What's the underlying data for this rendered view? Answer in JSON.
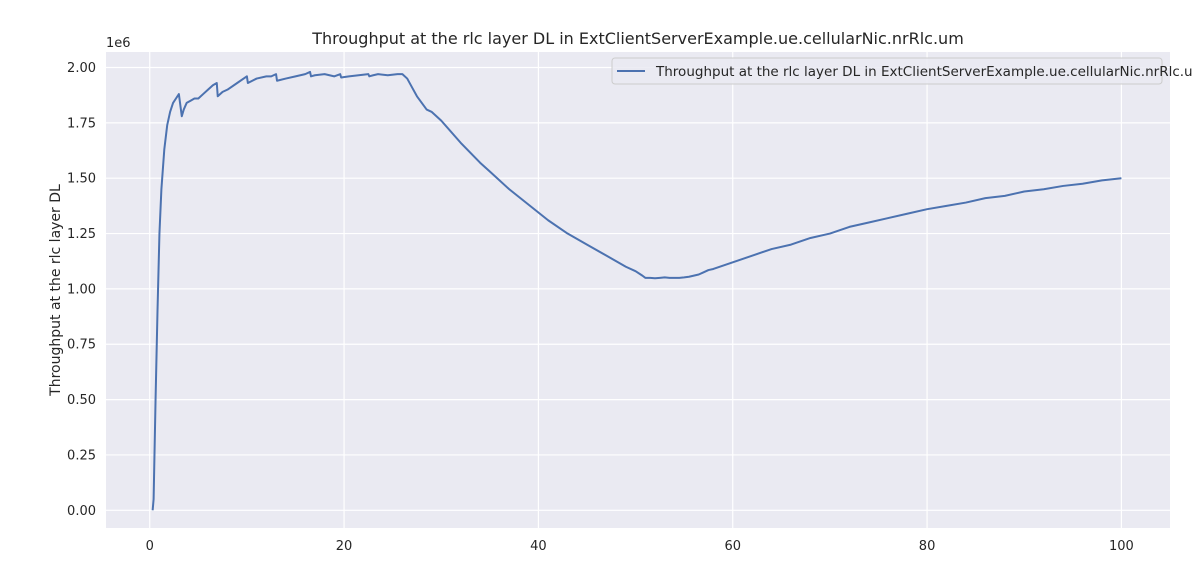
{
  "chart_data": {
    "type": "line",
    "title": "Throughput at the rlc layer DL in ExtClientServerExample.ue.cellularNic.nrRlc.um",
    "xlabel": "",
    "ylabel": "Throughput at the rlc layer DL",
    "y_offset_label": "1e6",
    "xlim": [
      -4.5,
      105
    ],
    "ylim": [
      -0.08,
      2.07
    ],
    "x_ticks": [
      0,
      20,
      40,
      60,
      80,
      100
    ],
    "x_tick_labels": [
      "0",
      "20",
      "40",
      "60",
      "80",
      "100"
    ],
    "y_ticks": [
      0.0,
      0.25,
      0.5,
      0.75,
      1.0,
      1.25,
      1.5,
      1.75,
      2.0
    ],
    "y_tick_labels": [
      "0.00",
      "0.25",
      "0.50",
      "0.75",
      "1.00",
      "1.25",
      "1.50",
      "1.75",
      "2.00"
    ],
    "grid": true,
    "legend_position": "top-right",
    "series": [
      {
        "name": "Throughput at the rlc layer DL in ExtClientServerExample.ue.cellularNic.nrRlc.um",
        "color": "#4c72b0",
        "x": [
          0.3,
          0.4,
          0.6,
          0.8,
          1.0,
          1.2,
          1.5,
          1.8,
          2.1,
          2.4,
          2.7,
          3.0,
          3.3,
          3.5,
          3.8,
          4.2,
          4.6,
          5.0,
          5.5,
          6.0,
          6.5,
          6.9,
          7.0,
          7.5,
          8.0,
          9.0,
          10.0,
          10.1,
          11.0,
          12.0,
          12.5,
          13.0,
          13.1,
          14.0,
          15.0,
          16.0,
          16.5,
          16.6,
          17.0,
          18.0,
          19.0,
          19.6,
          19.7,
          20.5,
          21.5,
          22.5,
          22.6,
          23.0,
          23.5,
          24.5,
          25.5,
          26.0,
          26.5,
          27.0,
          27.5,
          28.0,
          28.5,
          29.0,
          30.0,
          32.0,
          34.0,
          35.0,
          37.0,
          39.0,
          41.0,
          43.0,
          45.0,
          47.0,
          49.0,
          50.0,
          50.7,
          51.0,
          51.5,
          52.0,
          52.5,
          53.0,
          53.5,
          54.0,
          54.5,
          55.0,
          55.5,
          56.0,
          56.5,
          57.0,
          57.5,
          58.0,
          60.0,
          62.0,
          64.0,
          66.0,
          68.0,
          70.0,
          72.0,
          74.0,
          76.0,
          78.0,
          80.0,
          82.0,
          84.0,
          86.0,
          88.0,
          90.0,
          92.0,
          94.0,
          96.0,
          98.0,
          100.0
        ],
        "y": [
          0.0,
          0.05,
          0.5,
          0.9,
          1.25,
          1.45,
          1.63,
          1.74,
          1.8,
          1.84,
          1.86,
          1.88,
          1.78,
          1.81,
          1.84,
          1.85,
          1.86,
          1.86,
          1.88,
          1.9,
          1.92,
          1.93,
          1.87,
          1.89,
          1.9,
          1.93,
          1.96,
          1.93,
          1.95,
          1.96,
          1.96,
          1.97,
          1.94,
          1.95,
          1.96,
          1.97,
          1.98,
          1.96,
          1.965,
          1.97,
          1.96,
          1.97,
          1.955,
          1.96,
          1.965,
          1.97,
          1.96,
          1.965,
          1.97,
          1.965,
          1.97,
          1.97,
          1.95,
          1.91,
          1.87,
          1.84,
          1.81,
          1.8,
          1.76,
          1.66,
          1.57,
          1.53,
          1.45,
          1.38,
          1.31,
          1.25,
          1.2,
          1.15,
          1.1,
          1.08,
          1.06,
          1.05,
          1.05,
          1.048,
          1.05,
          1.052,
          1.05,
          1.05,
          1.05,
          1.052,
          1.055,
          1.06,
          1.065,
          1.075,
          1.085,
          1.09,
          1.12,
          1.15,
          1.18,
          1.2,
          1.23,
          1.25,
          1.28,
          1.3,
          1.32,
          1.34,
          1.36,
          1.375,
          1.39,
          1.41,
          1.42,
          1.44,
          1.45,
          1.465,
          1.475,
          1.49,
          1.5
        ]
      }
    ]
  }
}
